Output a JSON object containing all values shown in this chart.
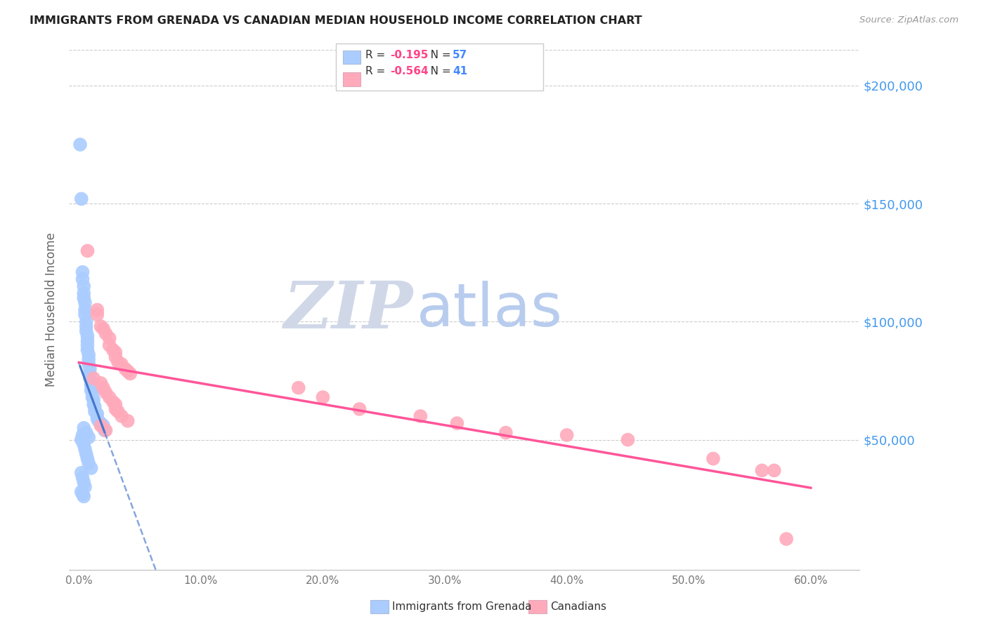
{
  "title": "IMMIGRANTS FROM GRENADA VS CANADIAN MEDIAN HOUSEHOLD INCOME CORRELATION CHART",
  "source": "Source: ZipAtlas.com",
  "ylabel": "Median Household Income",
  "xlabel_ticks": [
    "0.0%",
    "10.0%",
    "20.0%",
    "30.0%",
    "40.0%",
    "50.0%",
    "60.0%"
  ],
  "xlabel_vals": [
    0.0,
    0.1,
    0.2,
    0.3,
    0.4,
    0.5,
    0.6
  ],
  "ytick_labels": [
    "$50,000",
    "$100,000",
    "$150,000",
    "$200,000"
  ],
  "ytick_vals": [
    50000,
    100000,
    150000,
    200000
  ],
  "blue_r": "-0.195",
  "blue_n": "57",
  "pink_r": "-0.564",
  "pink_n": "41",
  "blue_color": "#aaccff",
  "pink_color": "#ffaabb",
  "blue_line_color": "#4477cc",
  "pink_line_color": "#ff5599",
  "blue_scatter": [
    [
      0.001,
      175000
    ],
    [
      0.002,
      152000
    ],
    [
      0.003,
      121000
    ],
    [
      0.003,
      118000
    ],
    [
      0.004,
      115000
    ],
    [
      0.004,
      112000
    ],
    [
      0.004,
      110000
    ],
    [
      0.005,
      108000
    ],
    [
      0.005,
      105000
    ],
    [
      0.005,
      103000
    ],
    [
      0.006,
      100000
    ],
    [
      0.006,
      98000
    ],
    [
      0.006,
      96000
    ],
    [
      0.007,
      94000
    ],
    [
      0.007,
      92000
    ],
    [
      0.007,
      90000
    ],
    [
      0.007,
      88000
    ],
    [
      0.008,
      86000
    ],
    [
      0.008,
      84000
    ],
    [
      0.008,
      82000
    ],
    [
      0.009,
      80000
    ],
    [
      0.009,
      78000
    ],
    [
      0.009,
      76000
    ],
    [
      0.01,
      74000
    ],
    [
      0.01,
      73000
    ],
    [
      0.01,
      71000
    ],
    [
      0.011,
      70000
    ],
    [
      0.011,
      68000
    ],
    [
      0.012,
      67000
    ],
    [
      0.012,
      65000
    ],
    [
      0.013,
      64000
    ],
    [
      0.013,
      62000
    ],
    [
      0.015,
      61000
    ],
    [
      0.015,
      59000
    ],
    [
      0.016,
      58000
    ],
    [
      0.018,
      57000
    ],
    [
      0.02,
      56000
    ],
    [
      0.021,
      54000
    ],
    [
      0.003,
      50000
    ],
    [
      0.004,
      48000
    ],
    [
      0.005,
      46000
    ],
    [
      0.006,
      44000
    ],
    [
      0.007,
      42000
    ],
    [
      0.008,
      40000
    ],
    [
      0.01,
      38000
    ],
    [
      0.002,
      36000
    ],
    [
      0.003,
      34000
    ],
    [
      0.004,
      32000
    ],
    [
      0.005,
      30000
    ],
    [
      0.002,
      28000
    ],
    [
      0.003,
      27000
    ],
    [
      0.004,
      26000
    ],
    [
      0.002,
      50000
    ],
    [
      0.003,
      52000
    ],
    [
      0.004,
      55000
    ],
    [
      0.006,
      53000
    ],
    [
      0.008,
      51000
    ]
  ],
  "pink_scatter": [
    [
      0.007,
      130000
    ],
    [
      0.015,
      105000
    ],
    [
      0.015,
      103000
    ],
    [
      0.018,
      98000
    ],
    [
      0.02,
      97000
    ],
    [
      0.022,
      95000
    ],
    [
      0.025,
      93000
    ],
    [
      0.025,
      90000
    ],
    [
      0.028,
      88000
    ],
    [
      0.03,
      87000
    ],
    [
      0.03,
      85000
    ],
    [
      0.032,
      83000
    ],
    [
      0.035,
      82000
    ],
    [
      0.038,
      80000
    ],
    [
      0.04,
      79000
    ],
    [
      0.042,
      78000
    ],
    [
      0.012,
      76000
    ],
    [
      0.018,
      74000
    ],
    [
      0.02,
      72000
    ],
    [
      0.022,
      70000
    ],
    [
      0.025,
      68000
    ],
    [
      0.028,
      66000
    ],
    [
      0.03,
      65000
    ],
    [
      0.03,
      63000
    ],
    [
      0.032,
      62000
    ],
    [
      0.035,
      60000
    ],
    [
      0.04,
      58000
    ],
    [
      0.018,
      56000
    ],
    [
      0.022,
      54000
    ],
    [
      0.18,
      72000
    ],
    [
      0.2,
      68000
    ],
    [
      0.23,
      63000
    ],
    [
      0.28,
      60000
    ],
    [
      0.31,
      57000
    ],
    [
      0.35,
      53000
    ],
    [
      0.4,
      52000
    ],
    [
      0.45,
      50000
    ],
    [
      0.52,
      42000
    ],
    [
      0.56,
      37000
    ],
    [
      0.57,
      37000
    ],
    [
      0.58,
      8000
    ]
  ],
  "watermark_zip": "ZIP",
  "watermark_atlas": "atlas",
  "watermark_zip_color": "#d0d8e8",
  "watermark_atlas_color": "#b8ccee",
  "bg_color": "#ffffff",
  "grid_color": "#cccccc",
  "xlim": [
    -0.008,
    0.64
  ],
  "ylim": [
    -5000,
    215000
  ]
}
